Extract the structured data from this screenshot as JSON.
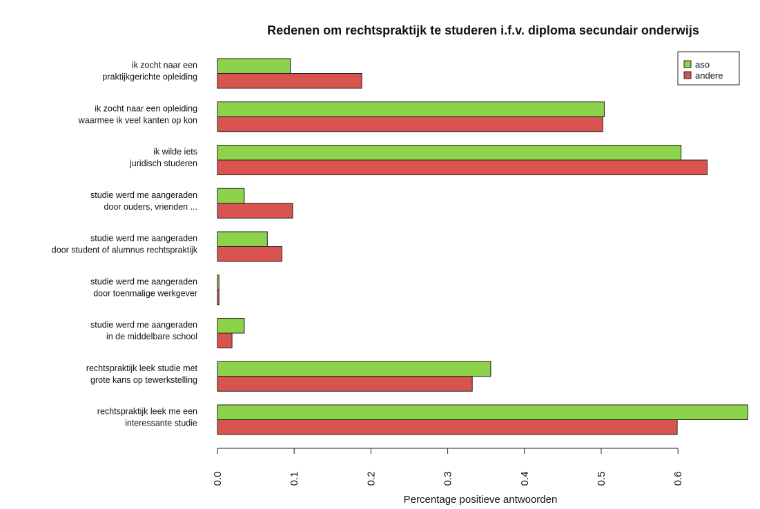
{
  "colors": {
    "aso": "#8cd24b",
    "andere": "#d9534f",
    "axis": "#222222",
    "bar_outline": "#222222"
  },
  "chart_data": {
    "type": "bar",
    "orientation": "horizontal",
    "title": "Redenen om rechtspraktijk te studeren i.f.v. diploma secundair onderwijs",
    "xlabel": "Percentage positieve antwoorden",
    "ylabel": "",
    "xlim": [
      0,
      0.69
    ],
    "x_ticks": [
      0.0,
      0.1,
      0.2,
      0.3,
      0.4,
      0.5,
      0.6
    ],
    "x_tick_labels": [
      "0.0",
      "0.1",
      "0.2",
      "0.3",
      "0.4",
      "0.5",
      "0.6"
    ],
    "legend_position": "top-right",
    "grid": false,
    "categories": [
      [
        "ik zocht naar een",
        "praktijkgerichte opleiding"
      ],
      [
        "ik zocht naar een opleiding",
        "waarmee ik veel kanten op kon"
      ],
      [
        "ik wilde iets",
        "juridisch studeren"
      ],
      [
        "studie werd me aangeraden",
        "door ouders, vrienden ..."
      ],
      [
        "studie werd me aangeraden",
        "door student of alumnus rechtspraktijk"
      ],
      [
        "studie werd me aangeraden",
        "door toenmalige werkgever"
      ],
      [
        "studie werd me aangeraden",
        "in de middelbare school"
      ],
      [
        "rechtspraktijk leek studie met",
        "grote kans op tewerkstelling"
      ],
      [
        "rechtspraktijk leek me een",
        "interessante studie"
      ]
    ],
    "series": [
      {
        "name": "aso",
        "values": [
          0.095,
          0.504,
          0.604,
          0.035,
          0.065,
          0.002,
          0.035,
          0.356,
          0.691
        ]
      },
      {
        "name": "andere",
        "values": [
          0.188,
          0.502,
          0.638,
          0.098,
          0.084,
          0.002,
          0.019,
          0.332,
          0.599
        ]
      }
    ]
  }
}
